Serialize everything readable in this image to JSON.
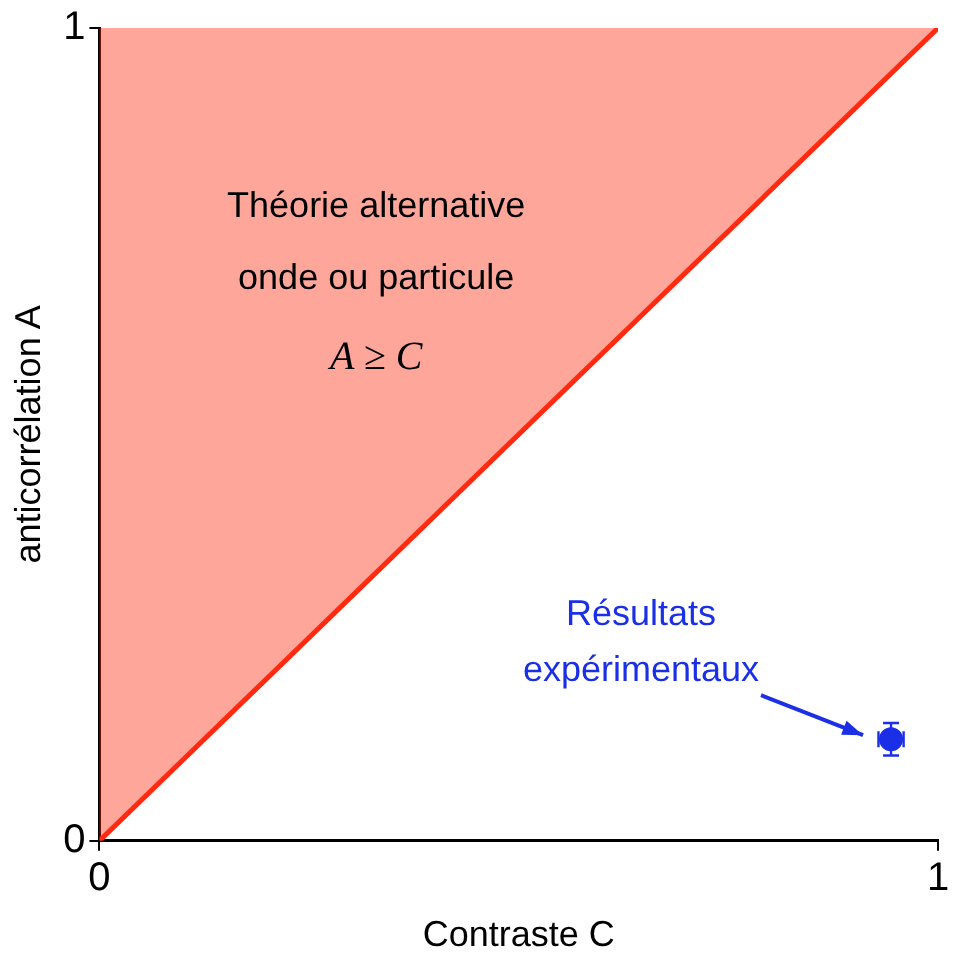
{
  "chart_data": {
    "type": "line",
    "xlabel": "Contraste C",
    "ylabel": "anticorrélation A",
    "xlim": [
      0,
      1
    ],
    "ylim": [
      0,
      1
    ],
    "xticks": [
      0,
      1
    ],
    "yticks": [
      0,
      1
    ],
    "grid": false,
    "legend": false,
    "annotations": [
      "Théorie alternative",
      "onde ou particule",
      "A ≥ C",
      "Résultats expérimentaux"
    ],
    "series": [
      {
        "x": [
          0,
          1
        ],
        "values": [
          0,
          1
        ],
        "lower": [
          0,
          1
        ],
        "upper": [
          1,
          1
        ],
        "color": "#ff2a10",
        "marker": "none"
      },
      {
        "type": "scatter",
        "x": [
          0.944
        ],
        "values": [
          0.125
        ],
        "errors": [
          0.02
        ],
        "xerrors": [
          0.015
        ],
        "color": "#1a2fe6",
        "marker": "circle"
      }
    ]
  }
}
